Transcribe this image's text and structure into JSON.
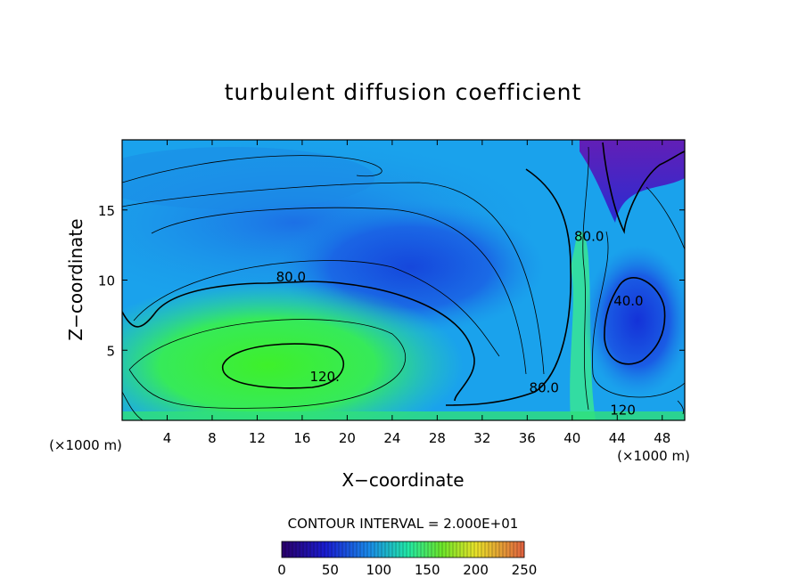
{
  "chart_data": {
    "type": "heatmap",
    "title": "turbulent diffusion coefficient",
    "xlabel": "X−coordinate",
    "ylabel": "Z−coordinate",
    "x_unit_left": "(×1000 m)",
    "x_unit_right": "(×1000 m)",
    "xlim": [
      0,
      50
    ],
    "ylim": [
      0,
      20
    ],
    "x_ticks": [
      4,
      8,
      12,
      16,
      20,
      24,
      28,
      32,
      36,
      40,
      44,
      48
    ],
    "y_ticks": [
      5,
      10,
      15
    ],
    "contour_interval_label": "CONTOUR INTERVAL = 2.000E+01",
    "contour_labels": [
      {
        "text": "80.0",
        "x": 15.0,
        "z": 9.9
      },
      {
        "text": "120.",
        "x": 18.0,
        "z": 2.8
      },
      {
        "text": "80.0",
        "x": 37.5,
        "z": 2.0
      },
      {
        "text": "80.0",
        "x": 41.5,
        "z": 12.8
      },
      {
        "text": "40.0",
        "x": 45.0,
        "z": 8.2
      },
      {
        "text": "120",
        "x": 44.5,
        "z": 0.4
      }
    ],
    "colorbar": {
      "range": [
        0,
        250
      ],
      "ticks": [
        0,
        50,
        100,
        150,
        200,
        250
      ],
      "colors": [
        "#2a0068",
        "#1a1cd0",
        "#1a8ae8",
        "#22e8a6",
        "#6ce62a",
        "#e8e22a",
        "#e06040"
      ]
    },
    "colors": {
      "low": "#2800a0",
      "mid_low": "#1660e0",
      "mid": "#1ab6ee",
      "high": "#2ee860"
    }
  }
}
